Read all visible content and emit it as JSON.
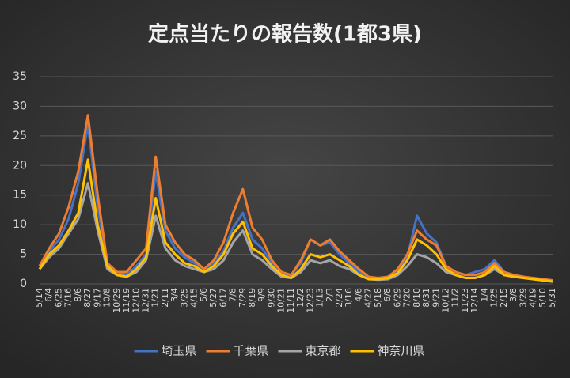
{
  "chart_data": {
    "type": "line",
    "title": "定点当たりの報告数(1都3県)",
    "categories": [
      "5/14",
      "6/4",
      "6/25",
      "7/16",
      "8/6",
      "8/27",
      "9/17",
      "10/8",
      "10/29",
      "11/19",
      "12/10",
      "12/31",
      "1/21",
      "2/11",
      "3/4",
      "3/25",
      "4/15",
      "5/6",
      "5/27",
      "6/17",
      "7/8",
      "7/29",
      "8/19",
      "9/9",
      "9/30",
      "10/21",
      "11/11",
      "12/2",
      "12/23",
      "1/13",
      "2/3",
      "2/24",
      "3/16",
      "4/6",
      "4/27",
      "5/18",
      "6/8",
      "6/29",
      "7/20",
      "8/10",
      "8/31",
      "9/21",
      "10/12",
      "11/2",
      "11/23",
      "12/14",
      "1/4",
      "1/25",
      "2/15",
      "3/8",
      "3/29",
      "4/19",
      "5/10",
      "5/31"
    ],
    "series": [
      {
        "name": "埼玉県",
        "color": "#4472c4",
        "values": [
          3,
          5.5,
          7.5,
          11,
          17,
          27,
          13,
          3.5,
          2,
          1.5,
          3,
          5,
          19,
          9,
          6,
          4.5,
          3.5,
          2.5,
          3.5,
          5.5,
          9.5,
          12,
          7.5,
          6,
          3.5,
          1.5,
          1.5,
          3.5,
          7.5,
          6.5,
          7,
          5,
          3.5,
          2,
          1,
          1,
          1.2,
          2,
          4.5,
          11.5,
          8.5,
          7,
          3,
          2,
          1.5,
          2,
          2.5,
          4,
          2,
          1.5,
          1.2,
          0.8,
          0.6,
          0.4
        ]
      },
      {
        "name": "千葉県",
        "color": "#ed7d31",
        "values": [
          3,
          6,
          8.5,
          13,
          19,
          28.5,
          15,
          3.5,
          2,
          2,
          4,
          6,
          21.5,
          10,
          7,
          5,
          4,
          2.5,
          4,
          7,
          12,
          16,
          9.5,
          7.5,
          4,
          2,
          1.5,
          4,
          7.5,
          6.5,
          7.5,
          5.5,
          4,
          2.5,
          1.2,
          1,
          1.2,
          2.5,
          5,
          9,
          7.5,
          6.5,
          3,
          2,
          1.5,
          1.5,
          2,
          3.5,
          2,
          1.5,
          1.2,
          1,
          0.8,
          0.6
        ]
      },
      {
        "name": "東京都",
        "color": "#a5a5a5",
        "values": [
          2.5,
          4.5,
          6,
          8.5,
          11,
          17,
          9,
          2.5,
          1.5,
          1.2,
          2,
          4,
          11.5,
          6,
          4,
          3,
          2.5,
          2,
          2.5,
          4,
          7,
          9,
          5,
          4,
          2.5,
          1.2,
          1,
          2,
          4,
          3.5,
          4,
          3,
          2.5,
          1.5,
          0.8,
          0.7,
          0.8,
          1.5,
          3,
          5,
          4.5,
          3.5,
          2,
          1.5,
          1,
          1,
          1.5,
          2.5,
          1.5,
          1.2,
          1,
          0.8,
          0.6,
          0.4
        ]
      },
      {
        "name": "神奈川県",
        "color": "#ffc000",
        "values": [
          2.5,
          5,
          6.5,
          9,
          12,
          21,
          10,
          3,
          1.5,
          1.2,
          2.5,
          4.5,
          14.5,
          7,
          5,
          3.5,
          3,
          2,
          3,
          5,
          8.5,
          10.5,
          6,
          5,
          3,
          1.5,
          1,
          2.5,
          5,
          4.5,
          5,
          4,
          3,
          1.5,
          0.8,
          0.8,
          1,
          1.8,
          4,
          7.5,
          6.5,
          5,
          2.5,
          1.5,
          1,
          1,
          1.5,
          3,
          1.5,
          1.2,
          1,
          0.8,
          0.6,
          0.4
        ]
      }
    ],
    "ylim": [
      0,
      35
    ],
    "yticks": [
      0,
      5,
      10,
      15,
      20,
      25,
      30,
      35
    ],
    "grid": true,
    "legend": "bottom"
  }
}
